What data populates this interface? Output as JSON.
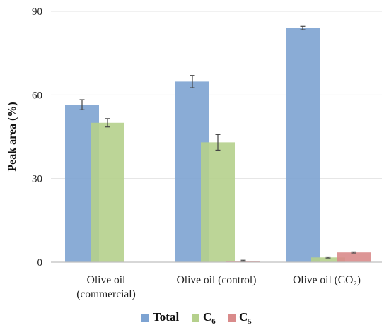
{
  "chart_data": {
    "type": "bar",
    "categories": [
      [
        "Olive oil",
        "(commercial)"
      ],
      [
        "Olive oil (control)"
      ],
      [
        "Olive oil (CO₂)"
      ]
    ],
    "series": [
      {
        "name": "Total",
        "legend_main": "Total",
        "legend_sub": "",
        "color": "#7da3d2",
        "values": [
          56.5,
          64.8,
          84.0
        ],
        "errors": [
          1.8,
          2.2,
          0.6
        ]
      },
      {
        "name": "C6",
        "legend_main": "C",
        "legend_sub": "6",
        "color": "#b5d08c",
        "values": [
          50.0,
          43.0,
          1.7
        ],
        "errors": [
          1.5,
          2.8,
          0.2
        ]
      },
      {
        "name": "C5",
        "legend_main": "C",
        "legend_sub": "5",
        "color": "#d98b8b",
        "values": [
          0,
          0.5,
          3.5
        ],
        "errors": [
          0,
          0.2,
          0.2
        ]
      }
    ],
    "ylabel": "Peak area (%)",
    "ylim": [
      0,
      90
    ],
    "yticks": [
      0,
      30,
      60,
      90
    ],
    "grid": true,
    "legend_position": "bottom"
  }
}
